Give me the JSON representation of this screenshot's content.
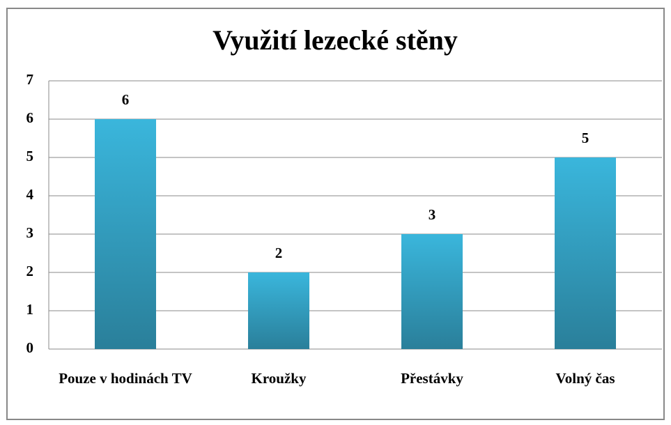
{
  "chart_data": {
    "type": "bar",
    "title": "Využití lezecké stěny",
    "categories": [
      "Pouze v hodinách TV",
      "Kroužky",
      "Přestávky",
      "Volný čas"
    ],
    "values": [
      6,
      2,
      3,
      5
    ],
    "color": "#3ab6dc",
    "ylim": [
      0,
      7
    ],
    "yticks": [
      0,
      1,
      2,
      3,
      4,
      5,
      6,
      7
    ],
    "grid": true
  }
}
